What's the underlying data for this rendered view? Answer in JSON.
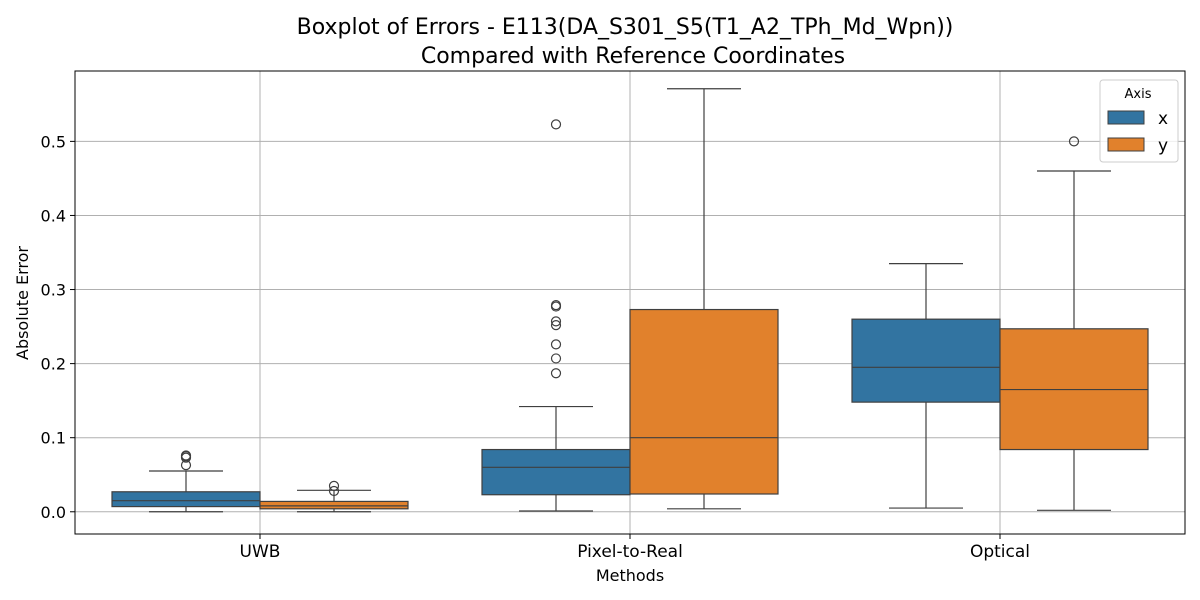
{
  "chart_data": {
    "type": "boxplot",
    "title_line1": "Boxplot of Errors - E113(DA_S301_S5(T1_A2_TPh_Md_Wpn))",
    "title_line2": "Compared with Reference Coordinates",
    "xlabel": "Methods",
    "ylabel": "Absolute Error",
    "ylim": [
      -0.03,
      0.595
    ],
    "yticks": [
      "0.0",
      "0.1",
      "0.2",
      "0.3",
      "0.4",
      "0.5"
    ],
    "grid": true,
    "legend": {
      "title": "Axis",
      "placement": "top-right",
      "items": [
        {
          "name": "x",
          "color": "#3274a1"
        },
        {
          "name": "y",
          "color": "#e1812c"
        }
      ]
    },
    "categories": [
      "UWB",
      "Pixel-to-Real",
      "Optical"
    ],
    "series": [
      {
        "name": "x",
        "color": "#3274a1",
        "boxes": [
          {
            "whislo": 0.0,
            "q1": 0.007,
            "med": 0.015,
            "q3": 0.027,
            "whishi": 0.055,
            "fliers": [
              0.063,
              0.073,
              0.075,
              0.076
            ]
          },
          {
            "whislo": 0.001,
            "q1": 0.023,
            "med": 0.06,
            "q3": 0.084,
            "whishi": 0.142,
            "fliers": [
              0.187,
              0.207,
              0.226,
              0.252,
              0.257,
              0.277,
              0.279,
              0.523
            ]
          },
          {
            "whislo": 0.005,
            "q1": 0.148,
            "med": 0.195,
            "q3": 0.26,
            "whishi": 0.335,
            "fliers": []
          }
        ]
      },
      {
        "name": "y",
        "color": "#e1812c",
        "boxes": [
          {
            "whislo": 0.0,
            "q1": 0.004,
            "med": 0.008,
            "q3": 0.014,
            "whishi": 0.029,
            "fliers": [
              0.028,
              0.035
            ]
          },
          {
            "whislo": 0.004,
            "q1": 0.024,
            "med": 0.1,
            "q3": 0.273,
            "whishi": 0.571,
            "fliers": []
          },
          {
            "whislo": 0.002,
            "q1": 0.084,
            "med": 0.165,
            "q3": 0.247,
            "whishi": 0.46,
            "fliers": [
              0.5
            ]
          }
        ]
      }
    ]
  }
}
